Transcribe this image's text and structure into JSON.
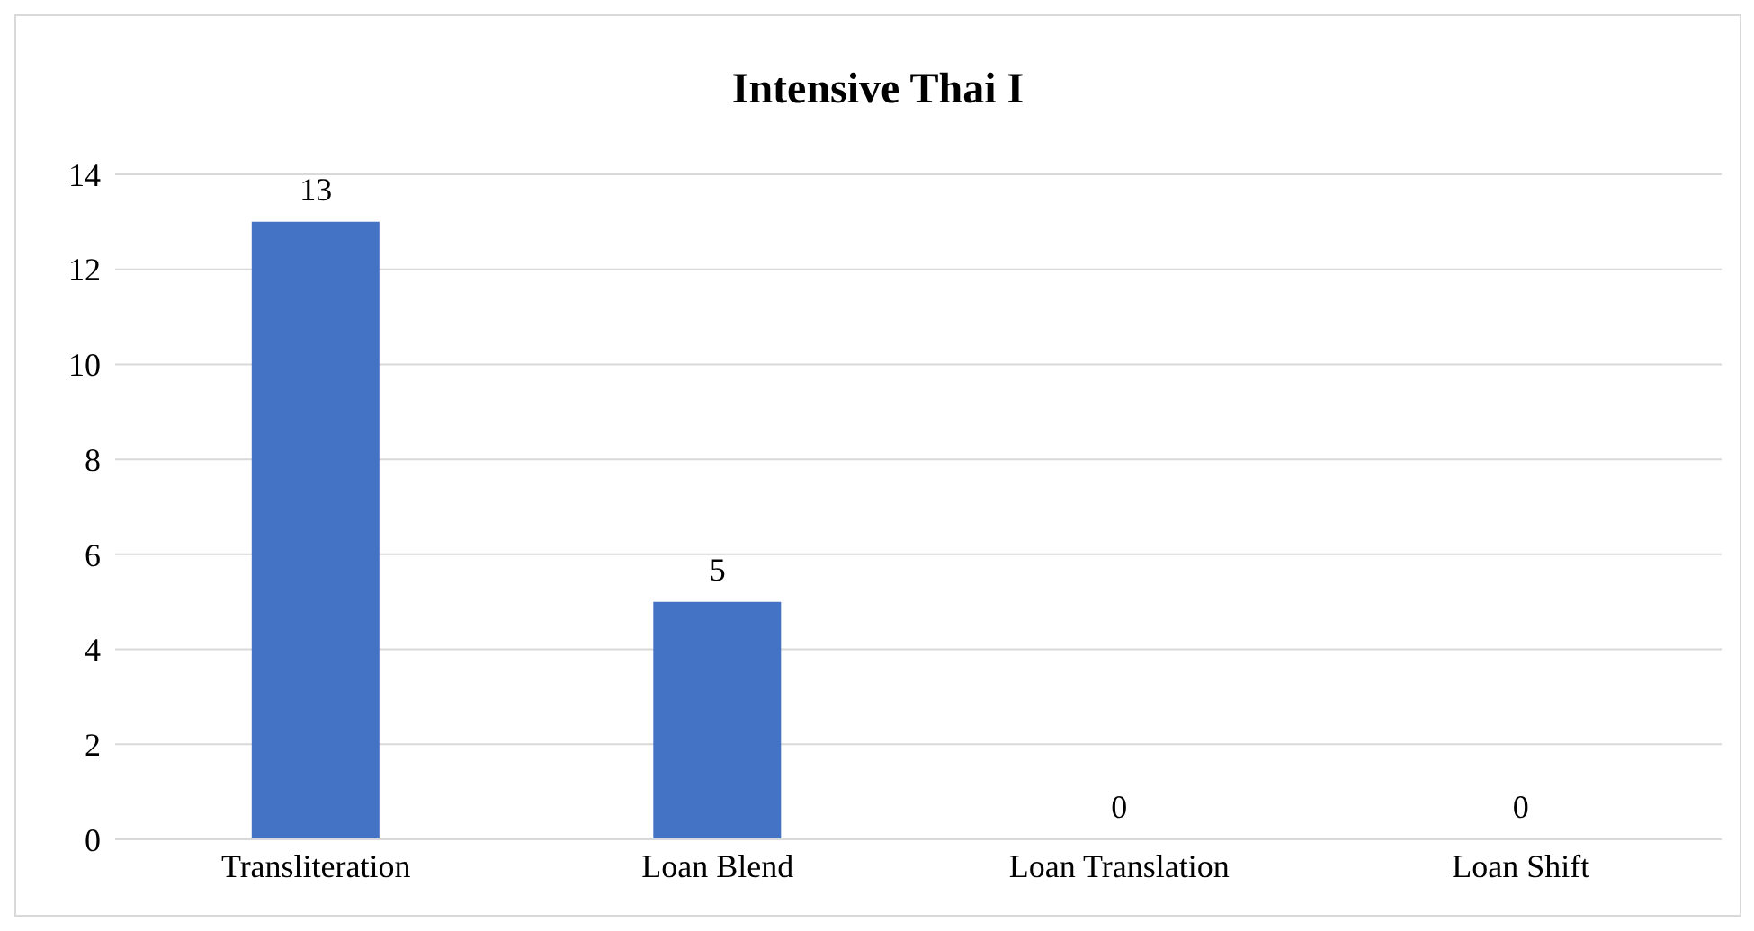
{
  "chart_data": {
    "type": "bar",
    "title": "Intensive Thai I",
    "categories": [
      "Transliteration",
      "Loan Blend",
      "Loan Translation",
      "Loan Shift"
    ],
    "values": [
      13,
      5,
      0,
      0
    ],
    "color": "#4472c4",
    "ylim": [
      0,
      14
    ],
    "yticks": [
      0,
      2,
      4,
      6,
      8,
      10,
      12,
      14
    ],
    "grid": "y",
    "data_labels": true
  }
}
